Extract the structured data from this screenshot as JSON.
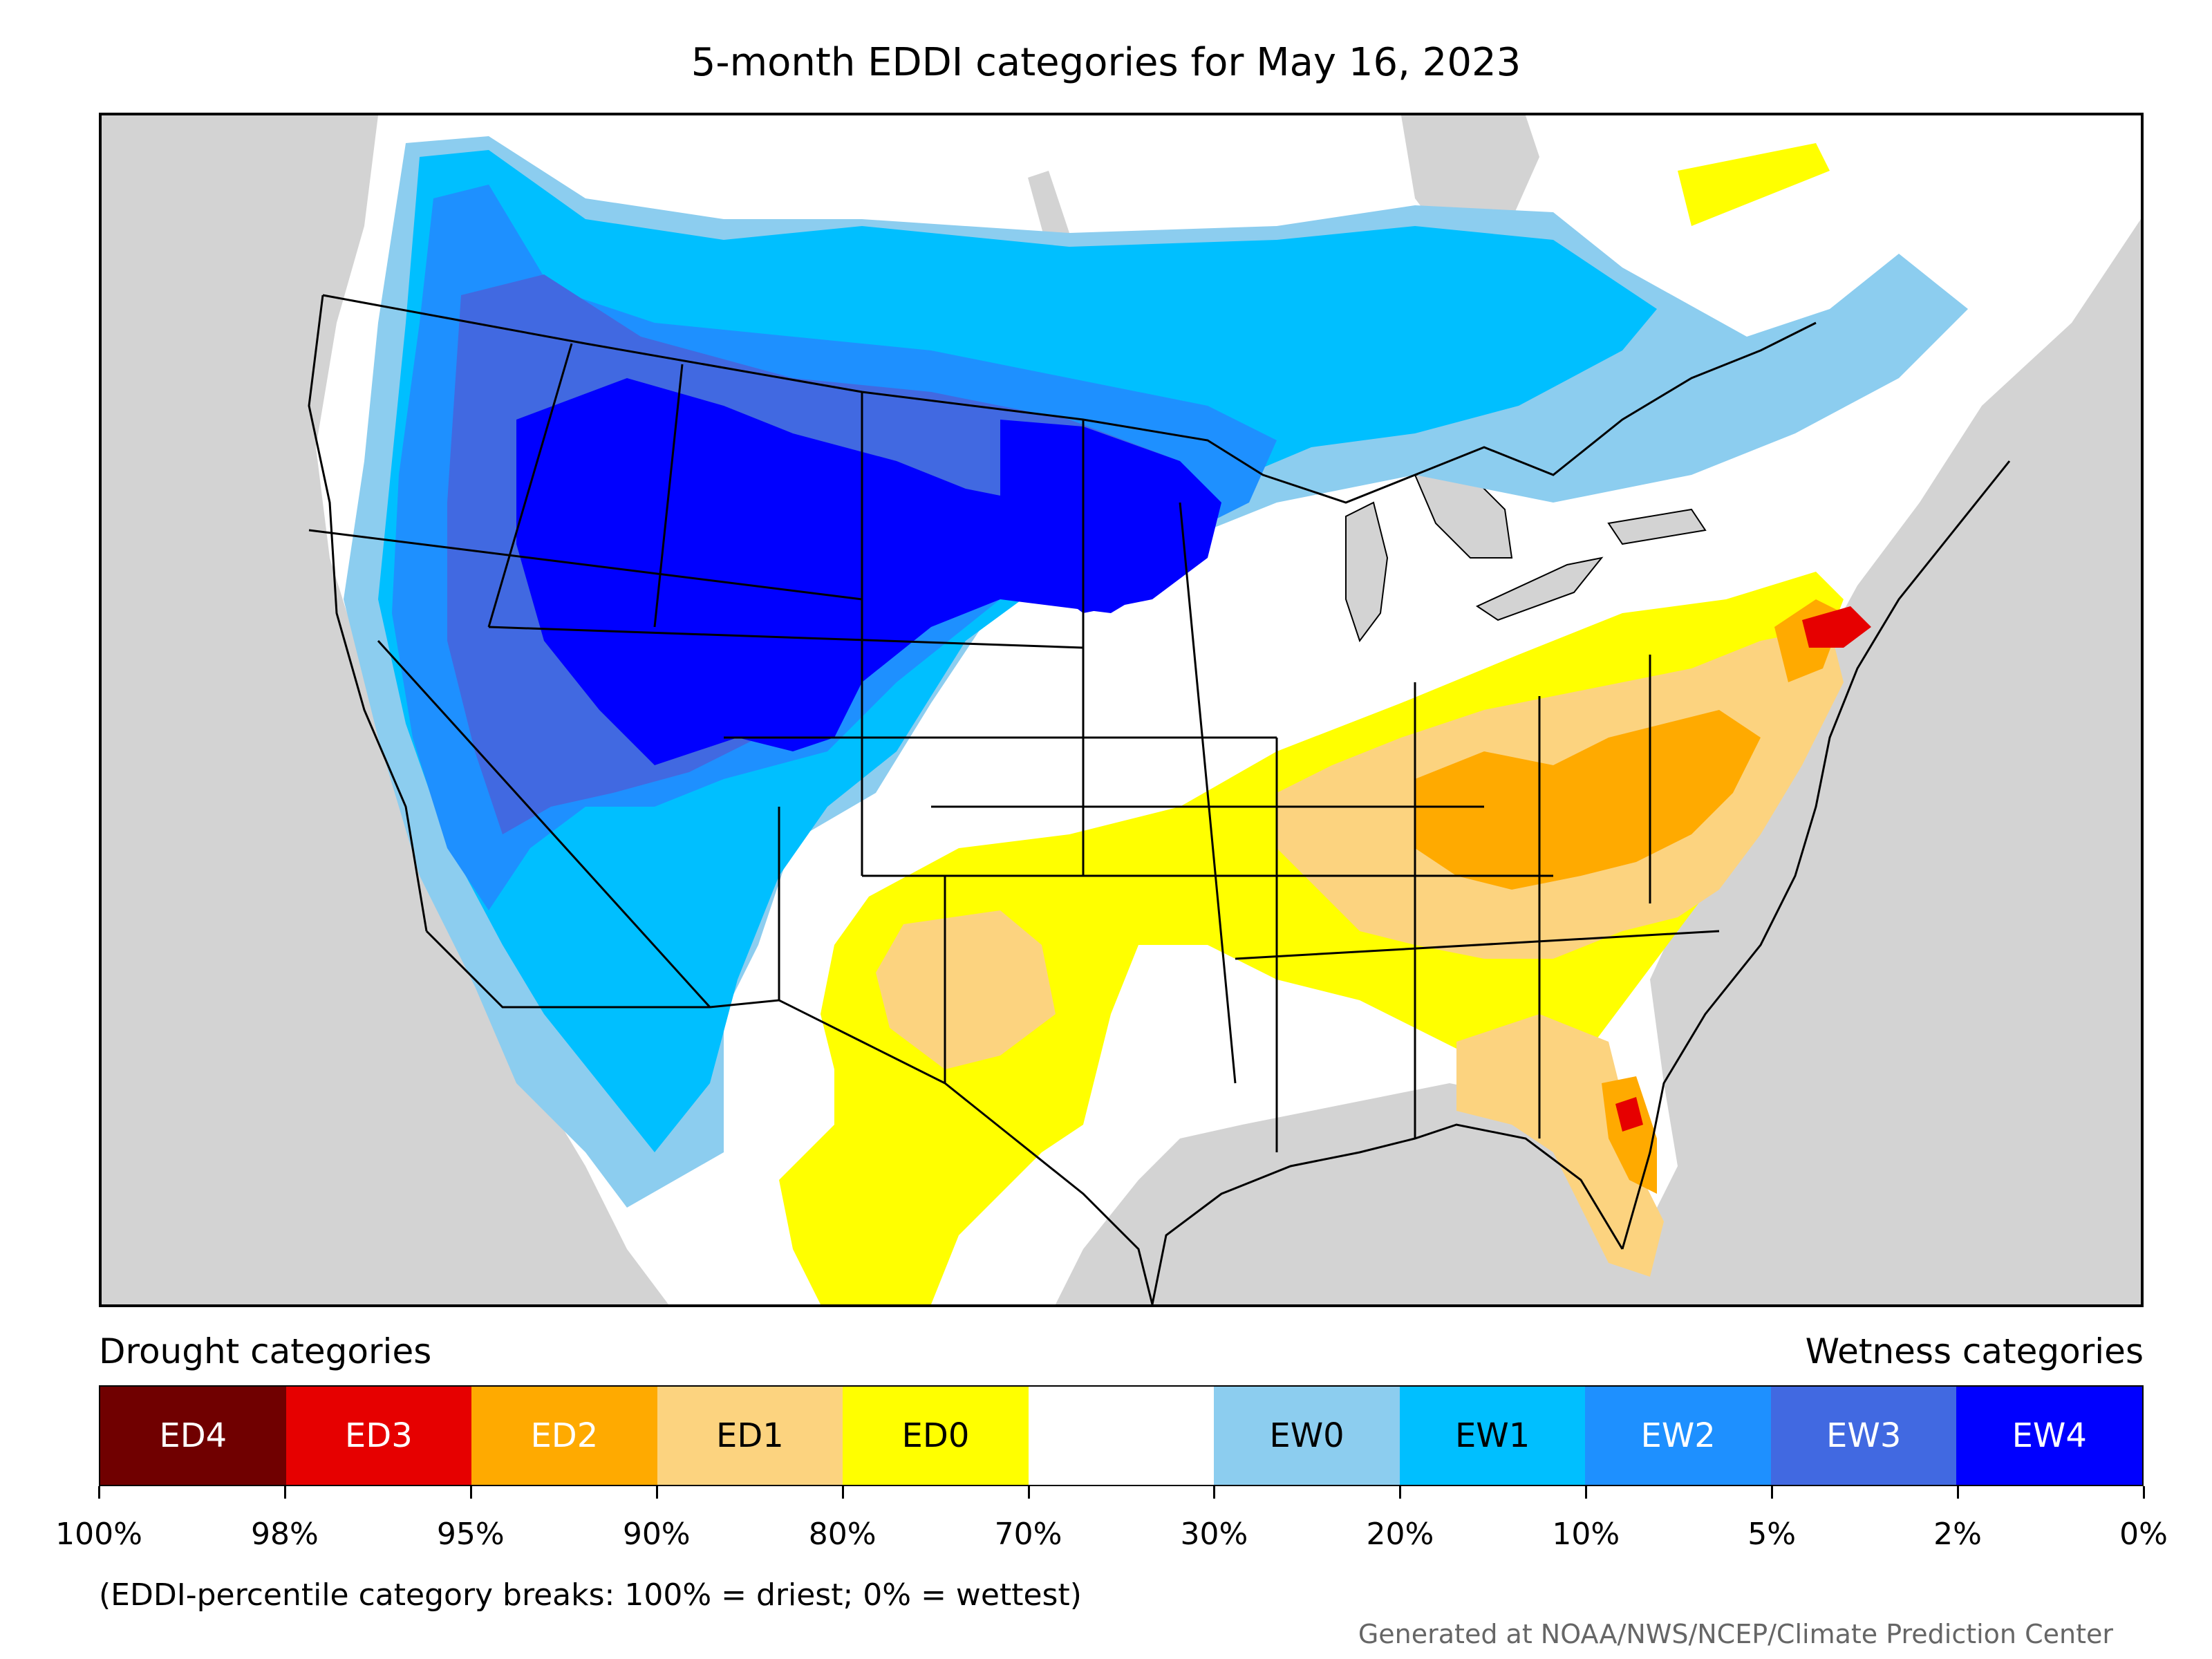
{
  "title": "5-month EDDI categories for May 16, 2023",
  "legend": {
    "left_heading": "Drought categories",
    "right_heading": "Wetness categories",
    "categories": [
      {
        "label": "ED4",
        "color": "#700000",
        "text_color": "#ffffff"
      },
      {
        "label": "ED3",
        "color": "#e60000",
        "text_color": "#ffffff"
      },
      {
        "label": "ED2",
        "color": "#ffaa00",
        "text_color": "#ffffff"
      },
      {
        "label": "ED1",
        "color": "#fcd37f",
        "text_color": "#000000"
      },
      {
        "label": "ED0",
        "color": "#ffff00",
        "text_color": "#000000"
      },
      {
        "label": "",
        "color": "#ffffff",
        "text_color": "#000000"
      },
      {
        "label": "EW0",
        "color": "#8ccdef",
        "text_color": "#000000"
      },
      {
        "label": "EW1",
        "color": "#00bfff",
        "text_color": "#000000"
      },
      {
        "label": "EW2",
        "color": "#1e90ff",
        "text_color": "#ffffff"
      },
      {
        "label": "EW3",
        "color": "#4169e1",
        "text_color": "#ffffff"
      },
      {
        "label": "EW4",
        "color": "#0000ff",
        "text_color": "#ffffff"
      }
    ],
    "tick_labels": [
      "100%",
      "98%",
      "95%",
      "90%",
      "80%",
      "70%",
      "30%",
      "20%",
      "10%",
      "5%",
      "2%",
      "0%"
    ]
  },
  "note": "(EDDI-percentile category breaks: 100% = driest; 0% = wettest)",
  "credit": "Generated at NOAA/NWS/NCEP/Climate Prediction Center",
  "map": {
    "background_color": "#d3d3d3",
    "land_color": "#ffffff",
    "boundary_color": "#000000"
  }
}
